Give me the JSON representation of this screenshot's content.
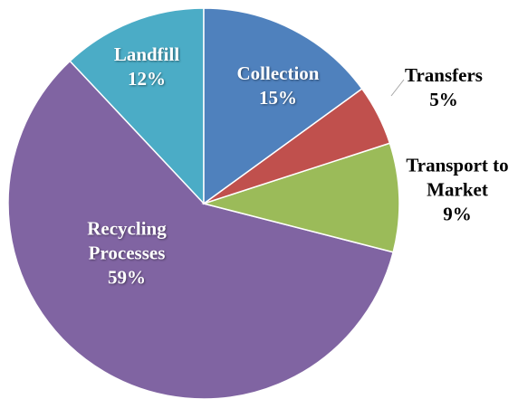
{
  "chart_data": {
    "type": "pie",
    "categories": [
      "Collection",
      "Transfers",
      "Transport to Market",
      "Recycling Processes",
      "Landfill"
    ],
    "values": [
      15,
      5,
      9,
      59,
      12
    ],
    "value_labels": [
      "15%",
      "5%",
      "9%",
      "59%",
      "12%"
    ],
    "colors": [
      "#4f81bd",
      "#c0504d",
      "#9bbb59",
      "#8064a2",
      "#4bacc6"
    ]
  }
}
